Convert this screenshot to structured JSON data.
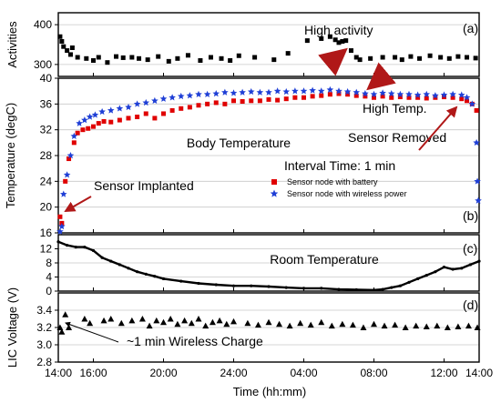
{
  "chart_data": [
    {
      "panel": "(a)",
      "type": "scatter",
      "ylabel": "Activities",
      "ylim": [
        270,
        430
      ],
      "yticks": [
        300,
        400
      ],
      "grid": true,
      "marker": "square",
      "color": "#000000",
      "annotations": [
        {
          "text": "High activity"
        }
      ],
      "series": [
        {
          "x": [
            0.1,
            0.2,
            0.3,
            0.5,
            0.7,
            0.8,
            1.1,
            1.6,
            2.0,
            2.3,
            2.8,
            3.3,
            3.7,
            4.2,
            4.6,
            5.1,
            5.7,
            6.3,
            6.8,
            7.4,
            8.1,
            8.7,
            9.3,
            9.8,
            10.3,
            11.2,
            12.3,
            13.1,
            14.2,
            15.0,
            15.5,
            15.8,
            16.0,
            16.2,
            16.4,
            16.7,
            17.0,
            17.2,
            17.8,
            18.5,
            19.2,
            19.6,
            20.1,
            20.6,
            21.2,
            21.8,
            22.3,
            22.8,
            23.3,
            23.8
          ],
          "y": [
            370,
            358,
            345,
            335,
            325,
            342,
            318,
            315,
            310,
            318,
            305,
            320,
            317,
            318,
            315,
            312,
            320,
            308,
            315,
            323,
            310,
            318,
            315,
            310,
            322,
            318,
            312,
            328,
            360,
            365,
            370,
            362,
            355,
            358,
            360,
            335,
            318,
            312,
            315,
            318,
            318,
            312,
            320,
            315,
            322,
            318,
            315,
            320,
            318,
            316
          ]
        }
      ]
    },
    {
      "panel": "(b)",
      "type": "scatter",
      "ylabel": "Temperature (degC)",
      "ylim": [
        16,
        40
      ],
      "yticks": [
        16,
        20,
        24,
        28,
        32,
        36,
        40
      ],
      "grid": true,
      "title": "Body Temperature",
      "annotations": [
        {
          "text": "High Temp."
        },
        {
          "text": "Sensor Removed"
        },
        {
          "text": "Sensor Implanted"
        },
        {
          "text": "Interval Time: 1 min"
        }
      ],
      "series": [
        {
          "name": "Sensor node with battery",
          "marker": "square",
          "color": "#e00000",
          "x": [
            0.1,
            0.2,
            0.4,
            0.6,
            0.9,
            1.1,
            1.4,
            1.7,
            2.0,
            2.3,
            2.6,
            3.0,
            3.5,
            4.0,
            4.5,
            5.0,
            5.5,
            6.0,
            6.5,
            7.0,
            7.5,
            8.0,
            8.5,
            9.0,
            9.5,
            10.0,
            10.5,
            11.0,
            11.5,
            12.0,
            12.5,
            13.0,
            13.5,
            14.0,
            14.5,
            15.0,
            15.5,
            16.0,
            16.5,
            17.0,
            17.5,
            18.0,
            18.5,
            19.0,
            19.5,
            20.0,
            20.5,
            21.0,
            21.5,
            22.0,
            22.5,
            23.0,
            23.3,
            23.6,
            23.85
          ],
          "y": [
            18.5,
            17.5,
            24.0,
            27.5,
            30.0,
            31.5,
            32.0,
            32.2,
            32.5,
            33.0,
            33.3,
            33.2,
            33.5,
            33.8,
            34.0,
            34.5,
            33.8,
            34.5,
            35.0,
            35.3,
            35.5,
            35.8,
            36.0,
            36.2,
            36.0,
            36.5,
            36.4,
            36.5,
            36.5,
            36.7,
            36.6,
            36.8,
            37.0,
            37.0,
            37.2,
            37.3,
            37.5,
            37.6,
            37.5,
            37.3,
            37.2,
            37.0,
            37.2,
            37.0,
            37.1,
            37.0,
            37.0,
            36.9,
            37.0,
            37.1,
            37.0,
            36.8,
            36.5,
            36.0,
            35.0
          ]
        },
        {
          "name": "Sensor node with wireless power",
          "marker": "star",
          "color": "#1f3fd6",
          "x": [
            0.1,
            0.2,
            0.3,
            0.5,
            0.7,
            0.9,
            1.2,
            1.5,
            1.8,
            2.1,
            2.5,
            3.0,
            3.5,
            4.0,
            4.5,
            5.0,
            5.5,
            6.0,
            6.5,
            7.0,
            7.5,
            8.0,
            8.5,
            9.0,
            9.5,
            10.0,
            10.5,
            11.0,
            11.5,
            12.0,
            12.5,
            13.0,
            13.5,
            14.0,
            14.5,
            15.0,
            15.5,
            16.0,
            16.5,
            17.0,
            17.5,
            18.0,
            18.5,
            19.0,
            19.5,
            20.0,
            20.5,
            21.0,
            21.5,
            22.0,
            22.5,
            23.0,
            23.3,
            23.6,
            23.85,
            23.9,
            23.95
          ],
          "y": [
            16.2,
            17.0,
            22.0,
            25.0,
            28.0,
            31.0,
            33.0,
            33.5,
            34.0,
            34.3,
            34.8,
            35.0,
            35.3,
            35.5,
            36.0,
            36.2,
            36.5,
            36.8,
            37.0,
            37.2,
            37.3,
            37.5,
            37.5,
            37.6,
            37.8,
            37.7,
            37.8,
            37.9,
            37.8,
            37.8,
            38.0,
            37.9,
            38.0,
            38.0,
            38.1,
            38.0,
            38.2,
            38.0,
            37.9,
            37.8,
            37.6,
            37.5,
            37.7,
            37.6,
            37.5,
            37.5,
            37.4,
            37.5,
            37.3,
            37.4,
            37.5,
            37.4,
            37.0,
            36.0,
            30.0,
            24.0,
            21.0
          ]
        }
      ]
    },
    {
      "panel": "(c)",
      "type": "line",
      "ylim": [
        0,
        16
      ],
      "yticks": [
        0,
        4,
        8,
        12
      ],
      "grid": true,
      "title": "Room Temperature",
      "color": "#000000",
      "series": [
        {
          "x": [
            0,
            0.5,
            1.0,
            1.5,
            2.0,
            2.5,
            3.0,
            3.5,
            4.0,
            4.5,
            5.0,
            5.5,
            6.0,
            7.0,
            8.0,
            9.0,
            10.0,
            11.0,
            12.0,
            13.0,
            14.0,
            15.0,
            16.0,
            17.0,
            18.0,
            18.5,
            19.0,
            19.5,
            20.0,
            20.5,
            21.0,
            21.5,
            22.0,
            22.5,
            23.0,
            23.5,
            24.0
          ],
          "y": [
            14.0,
            13.0,
            12.5,
            12.5,
            11.5,
            9.5,
            8.5,
            7.5,
            6.5,
            5.5,
            4.8,
            4.2,
            3.5,
            2.8,
            2.2,
            1.8,
            1.5,
            1.5,
            1.3,
            1.0,
            0.8,
            0.8,
            0.5,
            0.4,
            0.3,
            0.5,
            1.0,
            1.5,
            2.5,
            3.5,
            4.5,
            5.5,
            6.8,
            6.2,
            6.5,
            7.5,
            8.5
          ]
        }
      ]
    },
    {
      "panel": "(d)",
      "type": "scatter",
      "ylabel": "LIC Voltage (V)",
      "ylim": [
        2.8,
        3.6
      ],
      "yticks": [
        2.8,
        3.0,
        3.2,
        3.4
      ],
      "grid": true,
      "marker": "triangle",
      "color": "#000000",
      "annotations": [
        {
          "text": "~1 min Wireless Charge"
        }
      ],
      "series": [
        {
          "x": [
            0.1,
            0.2,
            0.4,
            0.6,
            1.5,
            1.8,
            2.6,
            3.0,
            3.6,
            4.2,
            4.8,
            5.2,
            5.6,
            6.0,
            6.4,
            6.8,
            7.2,
            7.6,
            8.0,
            8.4,
            8.8,
            9.2,
            9.6,
            10.0,
            10.8,
            11.4,
            12.0,
            12.6,
            13.2,
            13.8,
            14.4,
            15.0,
            15.6,
            16.2,
            16.8,
            17.4,
            18.0,
            18.6,
            19.2,
            19.8,
            20.4,
            21.0,
            21.6,
            22.2,
            22.8,
            23.4,
            23.9
          ],
          "y": [
            3.2,
            3.15,
            3.35,
            3.2,
            3.3,
            3.25,
            3.28,
            3.3,
            3.25,
            3.28,
            3.3,
            3.22,
            3.28,
            3.26,
            3.3,
            3.24,
            3.28,
            3.25,
            3.3,
            3.22,
            3.26,
            3.28,
            3.24,
            3.27,
            3.25,
            3.23,
            3.26,
            3.24,
            3.22,
            3.25,
            3.23,
            3.26,
            3.22,
            3.24,
            3.23,
            3.2,
            3.24,
            3.22,
            3.23,
            3.2,
            3.22,
            3.21,
            3.22,
            3.2,
            3.21,
            3.22,
            3.2
          ]
        }
      ]
    }
  ],
  "shared_axis": {
    "xlabel": "Time (hh:mm)",
    "xlim": [
      0,
      24
    ],
    "xtick_positions": [
      0,
      2,
      6,
      10,
      14,
      18,
      22,
      24
    ],
    "xticks": [
      "14:00",
      "16:00",
      "20:00",
      "24:00",
      "04:00",
      "08:00",
      "12:00",
      "14:00"
    ]
  },
  "shared_ylabel": "Temperature (degC)"
}
